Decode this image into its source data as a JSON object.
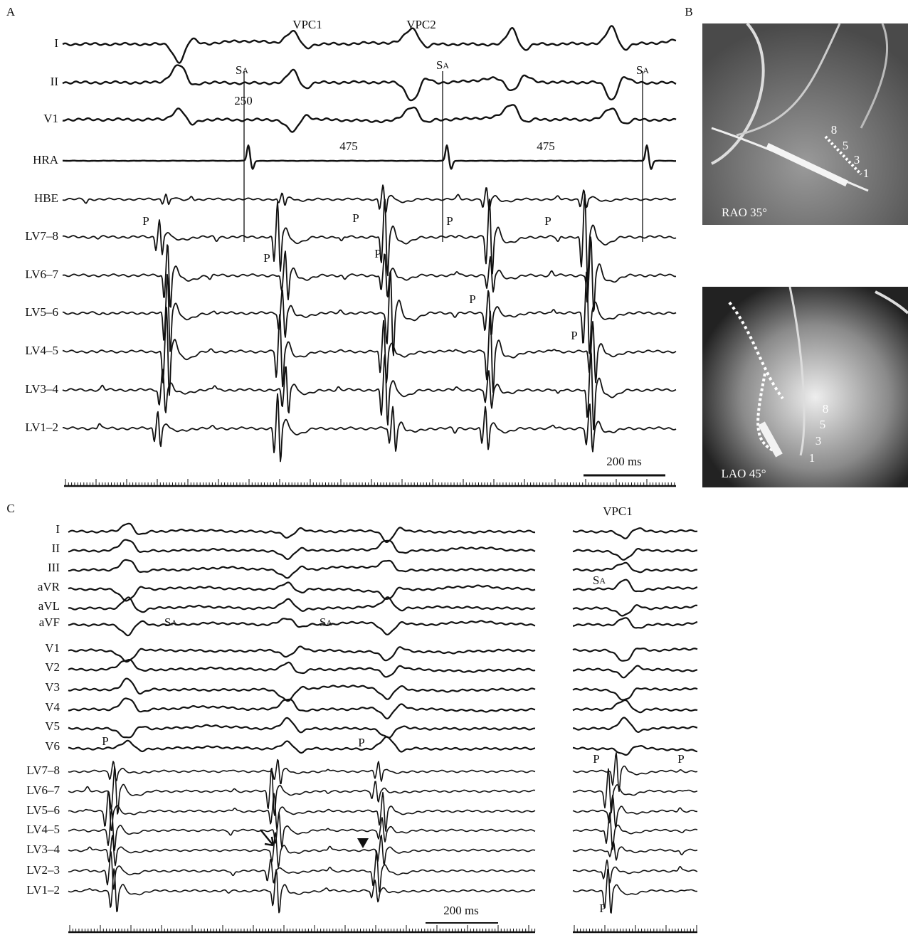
{
  "panel_a": {
    "label": "A",
    "events": [
      "VPC1",
      "VPC2"
    ],
    "leads": [
      "I",
      "II",
      "V1",
      "HRA",
      "HBE",
      "LV7–8",
      "LV6–7",
      "LV5–6",
      "LV4–5",
      "LV3–4",
      "LV1–2"
    ],
    "stimulus": [
      {
        "letter": "S",
        "subscript": "A"
      },
      {
        "letter": "S",
        "subscript": "A"
      },
      {
        "letter": "S",
        "subscript": "A"
      }
    ],
    "intervals": [
      "250",
      "475",
      "475"
    ],
    "p_waves": [
      "P",
      "P",
      "P",
      "P",
      "P",
      "P",
      "P",
      "P"
    ],
    "scale": "200 ms"
  },
  "panel_b": {
    "label": "B",
    "views": [
      {
        "projection": "RAO 35°",
        "electrodes": [
          "8",
          "5",
          "3",
          "1"
        ]
      },
      {
        "projection": "LAO 45°",
        "electrodes": [
          "8",
          "5",
          "3",
          "1"
        ]
      }
    ]
  },
  "panel_c": {
    "label": "C",
    "event": "VPC1",
    "leads": [
      "I",
      "II",
      "III",
      "aVR",
      "aVL",
      "aVF",
      "V1",
      "V2",
      "V3",
      "V4",
      "V5",
      "V6",
      "LV7–8",
      "LV6–7",
      "LV5–6",
      "LV4–5",
      "LV3–4",
      "LV2–3",
      "LV1–2"
    ],
    "stimulus": [
      {
        "letter": "S",
        "subscript": "A"
      },
      {
        "letter": "S",
        "subscript": "A"
      },
      {
        "letter": "S",
        "subscript": "A"
      }
    ],
    "p_waves": [
      "P",
      "P",
      "P",
      "P",
      "P"
    ],
    "scale": "200 ms"
  }
}
